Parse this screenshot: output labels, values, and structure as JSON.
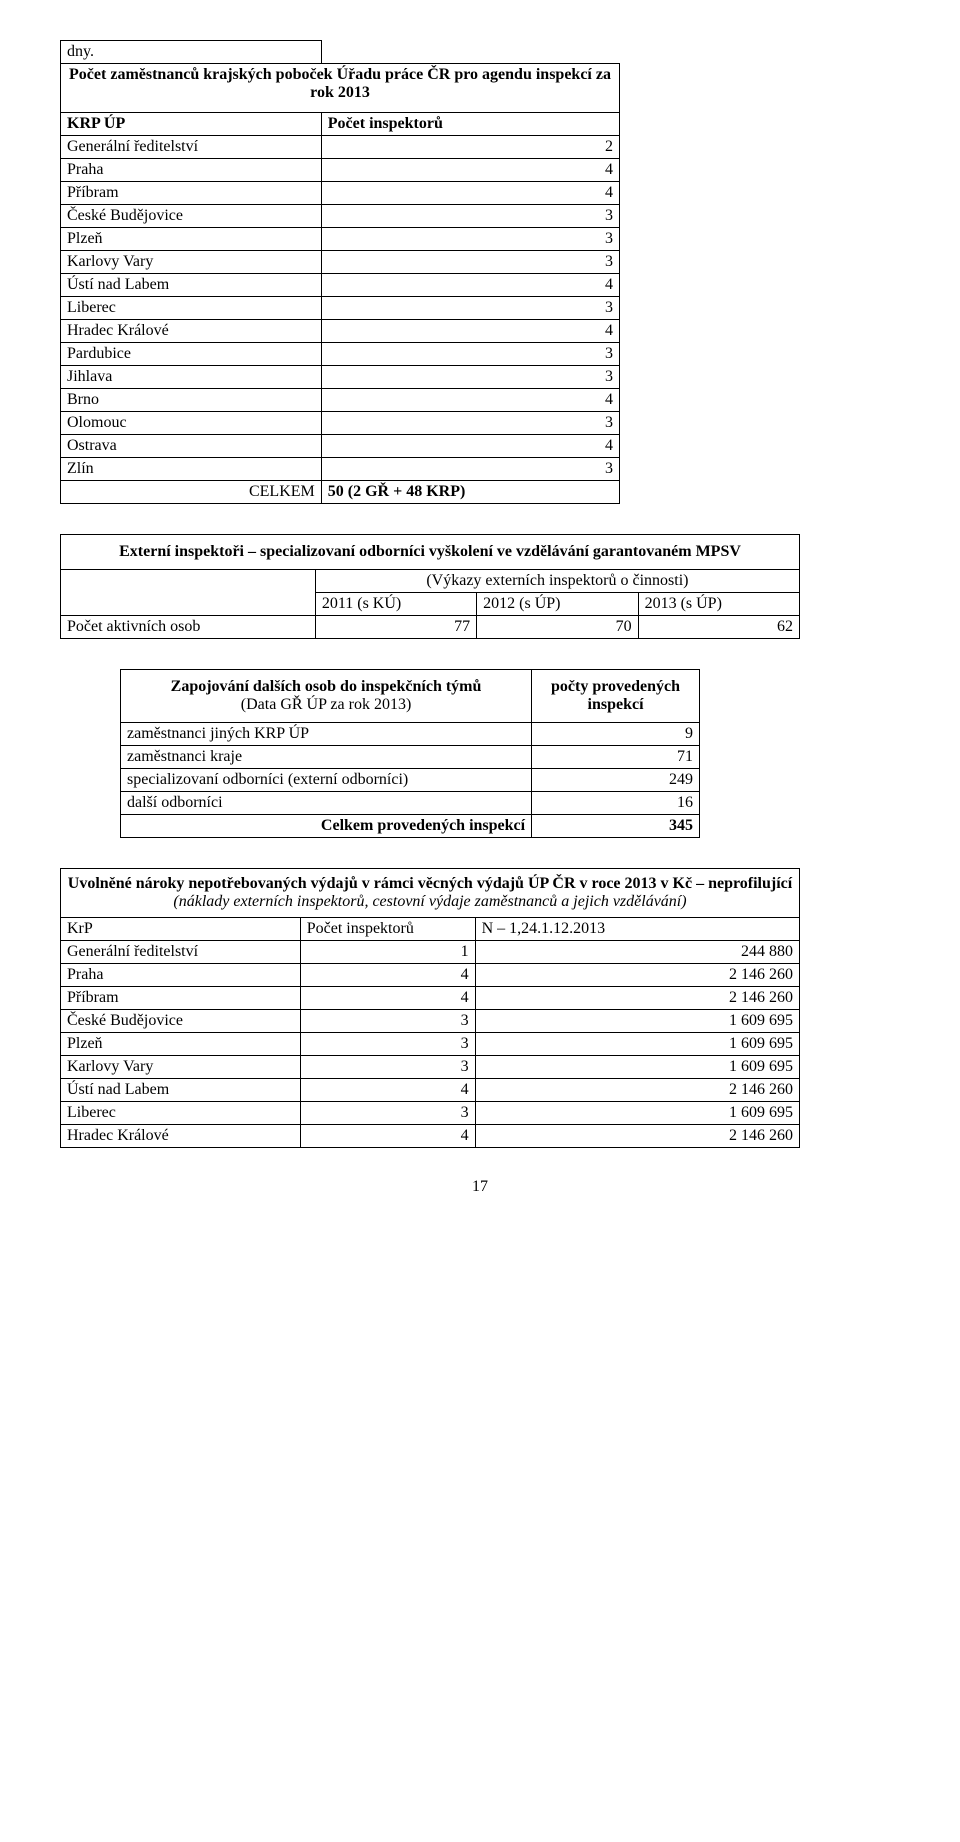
{
  "t1": {
    "dny": "dny.",
    "title": "Počet zaměstnanců krajských poboček Úřadu práce ČR pro agendu inspekcí za rok 2013",
    "col1": "KRP ÚP",
    "col2": "Počet inspektorů",
    "rows": [
      [
        "Generální ředitelství",
        "2"
      ],
      [
        "Praha",
        "4"
      ],
      [
        "Příbram",
        "4"
      ],
      [
        "České Budějovice",
        "3"
      ],
      [
        "Plzeň",
        "3"
      ],
      [
        "Karlovy Vary",
        "3"
      ],
      [
        "Ústí nad Labem",
        "4"
      ],
      [
        "Liberec",
        "3"
      ],
      [
        "Hradec Králové",
        "4"
      ],
      [
        "Pardubice",
        "3"
      ],
      [
        "Jihlava",
        "3"
      ],
      [
        "Brno",
        "4"
      ],
      [
        "Olomouc",
        "3"
      ],
      [
        "Ostrava",
        "4"
      ],
      [
        "Zlín",
        "3"
      ]
    ],
    "total_label": "CELKEM",
    "total_value": "50 (2 GŘ + 48 KRP)"
  },
  "t2": {
    "title": "Externí inspektoři – specializovaní odborníci vyškolení ve vzdělávání garantovaném MPSV",
    "subtitle": "(Výkazy externích inspektorů o činnosti)",
    "years": [
      "2011 (s KÚ)",
      "2012 (s ÚP)",
      "2013 (s ÚP)"
    ],
    "row_label": "Počet aktivních osob",
    "row_vals": [
      "77",
      "70",
      "62"
    ]
  },
  "t3": {
    "hdr_left_bold": "Zapojování dalších osob do inspekčních týmů",
    "hdr_left_sub": "(Data GŘ ÚP za rok 2013)",
    "hdr_right": "počty provedených inspekcí",
    "rows": [
      [
        "zaměstnanci jiných KRP ÚP",
        "9"
      ],
      [
        "zaměstnanci kraje",
        "71"
      ],
      [
        "specializovaní odborníci (externí odborníci)",
        "249"
      ],
      [
        "další odborníci",
        "16"
      ]
    ],
    "total_label": "Celkem provedených inspekcí",
    "total_value": "345"
  },
  "t4": {
    "title": "Uvolněné nároky nepotřebovaných výdajů v rámci věcných výdajů ÚP ČR v roce 2013 v Kč – neprofilující",
    "subtitle": "(náklady externích inspektorů, cestovní výdaje zaměstnanců a jejich vzdělávání)",
    "col1": "KrP",
    "col2": "Počet inspektorů",
    "col3": "N – 1,24.1.12.2013",
    "rows": [
      [
        "Generální ředitelství",
        "1",
        "244 880"
      ],
      [
        "Praha",
        "4",
        "2 146 260"
      ],
      [
        "Příbram",
        "4",
        "2 146 260"
      ],
      [
        "České Budějovice",
        "3",
        "1 609 695"
      ],
      [
        "Plzeň",
        "3",
        "1 609 695"
      ],
      [
        "Karlovy Vary",
        "3",
        "1 609 695"
      ],
      [
        "Ústí nad Labem",
        "4",
        "2 146 260"
      ],
      [
        "Liberec",
        "3",
        "1 609 695"
      ],
      [
        "Hradec Králové",
        "4",
        "2 146 260"
      ]
    ]
  },
  "page_number": "17"
}
